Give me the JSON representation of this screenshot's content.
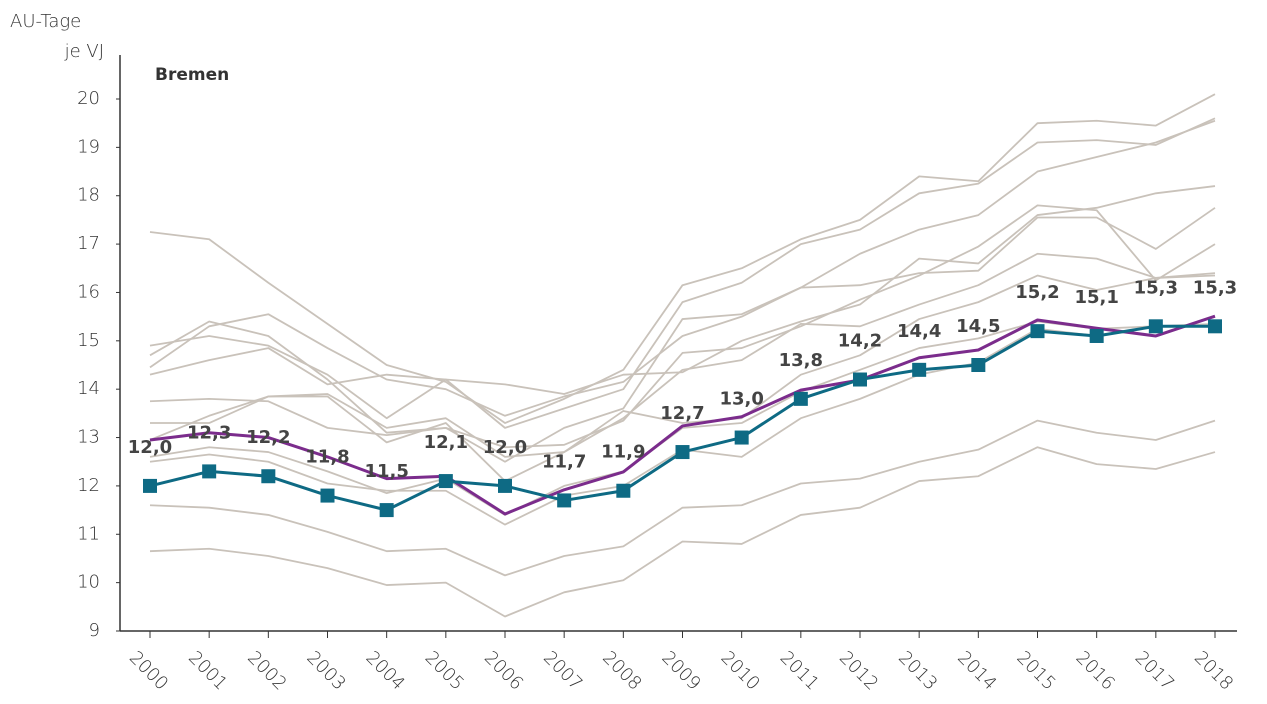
{
  "chart_data": {
    "type": "line",
    "ylabel": [
      "AU-Tage",
      "je VJ"
    ],
    "categories": [
      "2000",
      "2001",
      "2002",
      "2003",
      "2004",
      "2005",
      "2006",
      "2007",
      "2008",
      "2009",
      "2010",
      "2011",
      "2012",
      "2013",
      "2014",
      "2015",
      "2016",
      "2017",
      "2018"
    ],
    "ylim": [
      9,
      20
    ],
    "yticks": [
      9,
      10,
      11,
      12,
      13,
      14,
      15,
      16,
      17,
      18,
      19,
      20
    ],
    "series": [
      {
        "color": "#c9c2ba",
        "values": [
          17.25,
          17.1,
          16.2,
          15.35,
          14.5,
          14.15,
          13.3,
          13.8,
          14.4,
          16.15,
          16.5,
          17.1,
          17.5,
          18.4,
          18.3,
          19.5,
          19.55,
          19.45,
          20.1
        ]
      },
      {
        "color": "#c9c2ba",
        "values": [
          14.9,
          15.1,
          14.9,
          14.3,
          13.4,
          14.2,
          13.2,
          13.6,
          14.0,
          15.8,
          16.2,
          17.0,
          17.3,
          18.05,
          18.25,
          19.1,
          19.15,
          19.05,
          19.6
        ]
      },
      {
        "color": "#c9c2ba",
        "values": [
          14.7,
          15.4,
          15.1,
          14.2,
          13.1,
          13.2,
          12.5,
          13.2,
          13.6,
          15.45,
          15.55,
          16.1,
          16.8,
          17.3,
          17.6,
          18.5,
          18.8,
          19.1,
          19.55
        ]
      },
      {
        "color": "#c9c2ba",
        "values": [
          14.45,
          15.3,
          15.55,
          14.85,
          14.2,
          14.0,
          13.45,
          13.85,
          14.15,
          15.1,
          15.5,
          16.1,
          16.15,
          16.4,
          16.45,
          17.55,
          17.55,
          16.9,
          17.75
        ]
      },
      {
        "color": "#c9c2ba",
        "values": [
          14.3,
          14.6,
          14.85,
          14.1,
          14.3,
          14.2,
          14.1,
          13.9,
          14.3,
          14.35,
          15.0,
          15.4,
          15.75,
          16.7,
          16.6,
          17.6,
          17.75,
          18.05,
          18.2
        ]
      },
      {
        "color": "#c9c2ba",
        "values": [
          13.75,
          13.8,
          13.75,
          13.2,
          13.05,
          13.2,
          12.8,
          12.85,
          13.35,
          14.75,
          14.85,
          15.3,
          15.85,
          16.35,
          16.95,
          17.8,
          17.7,
          16.25,
          17.0
        ]
      },
      {
        "color": "#c9c2ba",
        "values": [
          13.3,
          13.3,
          13.85,
          13.9,
          13.2,
          13.4,
          12.6,
          12.7,
          13.4,
          14.4,
          14.6,
          15.35,
          15.3,
          15.75,
          16.15,
          16.8,
          16.7,
          16.3,
          16.4
        ]
      },
      {
        "color": "#c9c2ba",
        "values": [
          12.95,
          13.45,
          13.85,
          13.85,
          12.9,
          13.3,
          12.1,
          12.7,
          13.55,
          13.3,
          13.4,
          14.3,
          14.7,
          15.45,
          15.8,
          16.35,
          16.05,
          16.3,
          16.35
        ]
      },
      {
        "color": "#c9c2ba",
        "values": [
          12.6,
          12.8,
          12.7,
          12.3,
          11.85,
          12.15,
          11.4,
          12.0,
          12.3,
          13.2,
          13.3,
          13.95,
          14.4,
          14.85,
          15.05,
          15.4,
          15.25,
          15.3,
          15.35
        ]
      },
      {
        "color": "#c9c2ba",
        "values": [
          12.5,
          12.65,
          12.5,
          12.05,
          11.9,
          11.9,
          11.2,
          11.8,
          12.0,
          12.75,
          12.6,
          13.4,
          13.8,
          14.3,
          14.55,
          15.25,
          15.1,
          15.3,
          15.3
        ]
      },
      {
        "color": "#c9c2ba",
        "values": [
          11.6,
          11.55,
          11.4,
          11.05,
          10.65,
          10.7,
          10.15,
          10.55,
          10.75,
          11.55,
          11.6,
          12.05,
          12.15,
          12.5,
          12.75,
          13.35,
          13.1,
          12.95,
          13.35
        ]
      },
      {
        "color": "#c9c2ba",
        "values": [
          10.65,
          10.7,
          10.55,
          10.3,
          9.95,
          10.0,
          9.3,
          9.8,
          10.05,
          10.85,
          10.8,
          11.4,
          11.55,
          12.1,
          12.2,
          12.8,
          12.45,
          12.35,
          12.7
        ]
      },
      {
        "color": "#7b2c8c",
        "values": [
          12.95,
          13.1,
          13.0,
          12.6,
          12.15,
          12.2,
          11.42,
          11.92,
          12.29,
          13.24,
          13.43,
          13.98,
          14.19,
          14.65,
          14.81,
          15.43,
          15.26,
          15.1,
          15.51
        ]
      },
      {
        "name": "Bremen",
        "color": "#0e6a84",
        "markers": true,
        "values": [
          12.0,
          12.3,
          12.2,
          11.8,
          11.5,
          12.1,
          12.0,
          11.7,
          11.9,
          12.7,
          13.0,
          13.8,
          14.2,
          14.4,
          14.5,
          15.2,
          15.1,
          15.3,
          15.3
        ],
        "value_labels": [
          "12,0",
          "12,3",
          "12,2",
          "11,8",
          "11,5",
          "12,1",
          "12,0",
          "11,7",
          "11,9",
          "12,7",
          "13,0",
          "13,8",
          "14,2",
          "14,4",
          "14,5",
          "15,2",
          "15,1",
          "15,3",
          "15,3"
        ]
      }
    ]
  }
}
